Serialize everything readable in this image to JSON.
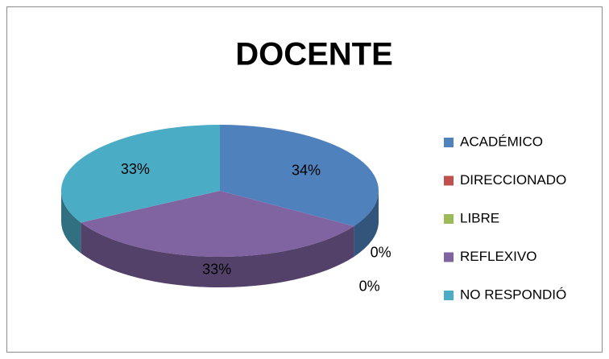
{
  "chart_data": {
    "type": "pie3d",
    "title": "DOCENTE",
    "categories": [
      "ACADÉMICO",
      "DIRECCIONADO",
      "LIBRE",
      "REFLEXIVO",
      "NO RESPONDIÓ"
    ],
    "values": [
      34,
      0,
      0,
      33,
      33
    ],
    "value_labels": [
      "34%",
      "0%",
      "0%",
      "33%",
      "33%"
    ],
    "colors": [
      "#4f81bd",
      "#c0504d",
      "#9bbb59",
      "#8064a2",
      "#4bacc6"
    ],
    "legend": "right"
  }
}
